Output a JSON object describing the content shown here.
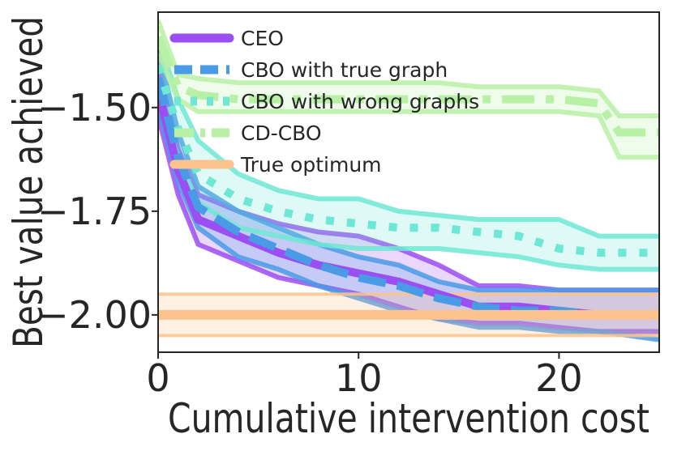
{
  "chart_data": {
    "type": "line",
    "title": "",
    "xlabel": "Cumulative intervention cost",
    "ylabel": "Best value achieved",
    "xlim": [
      0,
      25
    ],
    "ylim": [
      -2.09,
      -1.27
    ],
    "xticks": [
      0,
      10,
      20
    ],
    "xtick_labels": [
      "0",
      "10",
      "20"
    ],
    "yticks": [
      -2.0,
      -1.75,
      -1.5
    ],
    "ytick_labels": [
      "−2.00",
      "−1.75",
      "−1.50"
    ],
    "grid": false,
    "legend_position": "top-left",
    "series": [
      {
        "name": "CEO",
        "color": "#9b4ef2",
        "style": "solid",
        "x": [
          0,
          1,
          2,
          4,
          6,
          8,
          10,
          12,
          14,
          16,
          18,
          20,
          22,
          25
        ],
        "mean": [
          -1.46,
          -1.65,
          -1.77,
          -1.81,
          -1.85,
          -1.88,
          -1.9,
          -1.92,
          -1.95,
          -1.98,
          -1.98,
          -1.99,
          -2.0,
          -2.0
        ],
        "upper": [
          -1.4,
          -1.6,
          -1.71,
          -1.75,
          -1.78,
          -1.8,
          -1.81,
          -1.84,
          -1.88,
          -1.93,
          -1.93,
          -1.94,
          -1.94,
          -1.94
        ],
        "lower": [
          -1.52,
          -1.71,
          -1.83,
          -1.87,
          -1.91,
          -1.93,
          -1.95,
          -1.98,
          -2.01,
          -2.02,
          -2.02,
          -2.03,
          -2.04,
          -2.04
        ]
      },
      {
        "name": "CBO with true graph",
        "color": "#4a9be6",
        "style": "dashed",
        "x": [
          0,
          1,
          2,
          4,
          6,
          8,
          10,
          12,
          14,
          16,
          18,
          20,
          22,
          25
        ],
        "mean": [
          -1.43,
          -1.62,
          -1.74,
          -1.8,
          -1.84,
          -1.88,
          -1.91,
          -1.93,
          -1.96,
          -1.98,
          -1.99,
          -1.99,
          -2.0,
          -2.0
        ],
        "upper": [
          -1.36,
          -1.56,
          -1.69,
          -1.75,
          -1.79,
          -1.83,
          -1.86,
          -1.88,
          -1.92,
          -1.94,
          -1.94,
          -1.94,
          -1.94,
          -1.94
        ],
        "lower": [
          -1.5,
          -1.68,
          -1.79,
          -1.86,
          -1.89,
          -1.93,
          -1.96,
          -1.99,
          -2.01,
          -2.03,
          -2.03,
          -2.04,
          -2.04,
          -2.06
        ]
      },
      {
        "name": "CBO with wrong graphs",
        "color": "#6ee8d4",
        "style": "dotted",
        "x": [
          0,
          1,
          2,
          4,
          6,
          8,
          10,
          12,
          14,
          16,
          18,
          20,
          22,
          25
        ],
        "mean": [
          -1.4,
          -1.55,
          -1.66,
          -1.72,
          -1.75,
          -1.77,
          -1.78,
          -1.79,
          -1.79,
          -1.8,
          -1.81,
          -1.84,
          -1.85,
          -1.85
        ],
        "upper": [
          -1.33,
          -1.48,
          -1.58,
          -1.66,
          -1.7,
          -1.72,
          -1.72,
          -1.75,
          -1.76,
          -1.77,
          -1.77,
          -1.77,
          -1.81,
          -1.81
        ],
        "lower": [
          -1.48,
          -1.62,
          -1.73,
          -1.79,
          -1.81,
          -1.83,
          -1.84,
          -1.84,
          -1.84,
          -1.85,
          -1.86,
          -1.88,
          -1.89,
          -1.89
        ]
      },
      {
        "name": "CD-CBO",
        "color": "#b8f0a6",
        "style": "dashdot",
        "x": [
          0,
          1,
          2,
          4,
          6,
          8,
          10,
          12,
          14,
          16,
          18,
          20,
          22,
          23,
          25
        ],
        "mean": [
          -1.33,
          -1.45,
          -1.47,
          -1.48,
          -1.48,
          -1.48,
          -1.48,
          -1.48,
          -1.48,
          -1.48,
          -1.48,
          -1.48,
          -1.49,
          -1.56,
          -1.56
        ],
        "upper": [
          -1.29,
          -1.42,
          -1.43,
          -1.44,
          -1.44,
          -1.44,
          -1.44,
          -1.44,
          -1.44,
          -1.45,
          -1.45,
          -1.45,
          -1.46,
          -1.52,
          -1.52
        ],
        "lower": [
          -1.37,
          -1.48,
          -1.51,
          -1.51,
          -1.51,
          -1.51,
          -1.51,
          -1.51,
          -1.51,
          -1.51,
          -1.51,
          -1.51,
          -1.52,
          -1.62,
          -1.62
        ]
      },
      {
        "name": "True optimum",
        "color": "#fbc38e",
        "style": "solid",
        "x": [
          0,
          25
        ],
        "mean": [
          -2.0,
          -2.0
        ],
        "upper": [
          -1.95,
          -1.95
        ],
        "lower": [
          -2.05,
          -2.05
        ]
      }
    ]
  }
}
